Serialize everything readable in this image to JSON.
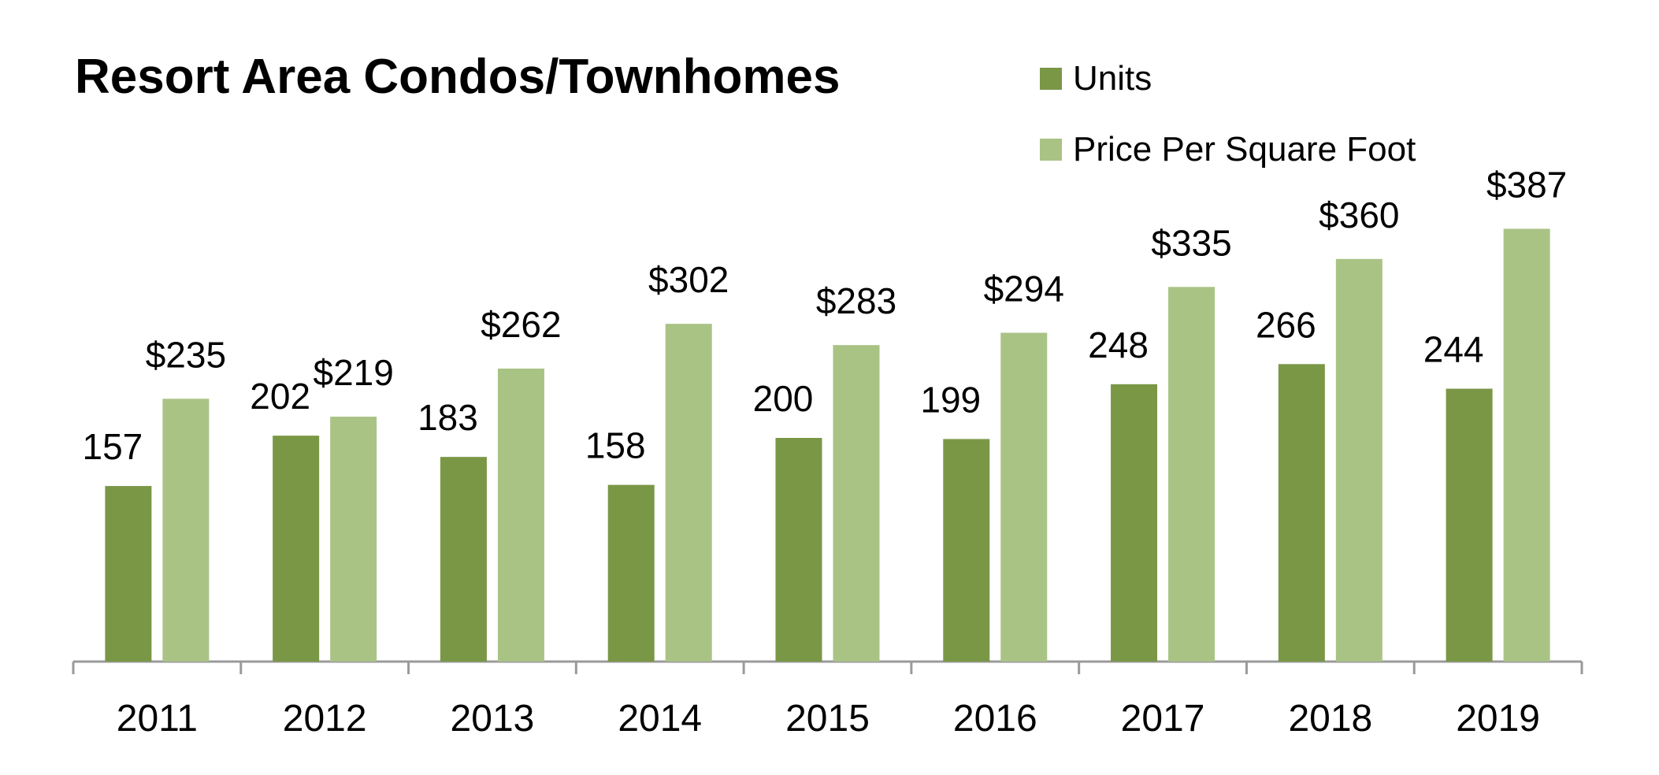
{
  "chart_data": {
    "type": "bar",
    "title": "Resort Area Condos/Townhomes",
    "categories": [
      "2011",
      "2012",
      "2013",
      "2014",
      "2015",
      "2016",
      "2017",
      "2018",
      "2019"
    ],
    "series": [
      {
        "name": "Units",
        "color": "#7a9746",
        "values": [
          157,
          202,
          183,
          158,
          200,
          199,
          248,
          266,
          244
        ],
        "labels": [
          "157",
          "202",
          "183",
          "158",
          "200",
          "199",
          "248",
          "266",
          "244"
        ]
      },
      {
        "name": "Price Per Square Foot",
        "color": "#a9c385",
        "values": [
          235,
          219,
          262,
          302,
          283,
          294,
          335,
          360,
          387
        ],
        "labels": [
          "$235",
          "$219",
          "$262",
          "$302",
          "$283",
          "$294",
          "$335",
          "$360",
          "$387"
        ]
      }
    ],
    "xlabel": "",
    "ylabel": "",
    "ylim": [
      0,
      400
    ],
    "grid": false,
    "legend": "top-right"
  }
}
